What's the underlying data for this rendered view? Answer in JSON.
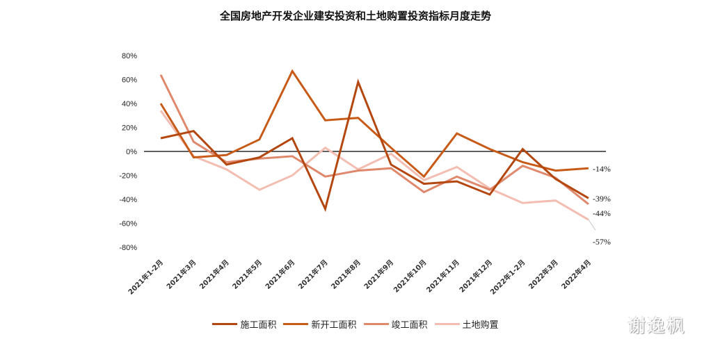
{
  "title": "全国房地产开发企业建安投资和土地购置投资指标月度走势",
  "watermark": "谢逸枫",
  "chart_data": {
    "type": "line",
    "title": "全国房地产开发企业建安投资和土地购置投资指标月度走势",
    "xlabel": "",
    "ylabel": "",
    "ylim": [
      -80,
      80
    ],
    "yticks": [
      "80%",
      "60%",
      "40%",
      "20%",
      "0%",
      "-20%",
      "-40%",
      "-60%",
      "-80%"
    ],
    "grid": false,
    "legend_position": "bottom",
    "categories": [
      "2021年1-2月",
      "2021年3月",
      "2021年4月",
      "2021年5月",
      "2021年6月",
      "2021年7月",
      "2021年8月",
      "2021年9月",
      "2021年10月",
      "2021年11月",
      "2021年12月",
      "2022年1-2月",
      "2022年3月",
      "2022年4月"
    ],
    "series": [
      {
        "name": "施工面积",
        "color": "#B4470F",
        "values": [
          11,
          17,
          -11,
          -5,
          11,
          -48,
          58,
          -11,
          -27,
          -25,
          -36,
          2,
          -23,
          -39
        ],
        "end_label": "-39%"
      },
      {
        "name": "新开工面积",
        "color": "#C85A17",
        "values": [
          40,
          -5,
          -3,
          10,
          67,
          26,
          28,
          3,
          -21,
          15,
          2,
          -9,
          -16,
          -14
        ],
        "end_label": "-14%"
      },
      {
        "name": "竣工面积",
        "color": "#E0886C",
        "values": [
          64,
          8,
          -9,
          -6,
          -4,
          -21,
          -16,
          -14,
          -34,
          -21,
          -32,
          -12,
          -22,
          -44
        ],
        "end_label": "-44%"
      },
      {
        "name": "土地购置",
        "color": "#F3BDB1",
        "values": [
          34,
          -4,
          -15,
          -32,
          -20,
          3,
          -15,
          -2,
          -24,
          -13,
          -31,
          -43,
          -41,
          -57
        ],
        "end_label": "-57%"
      }
    ]
  }
}
